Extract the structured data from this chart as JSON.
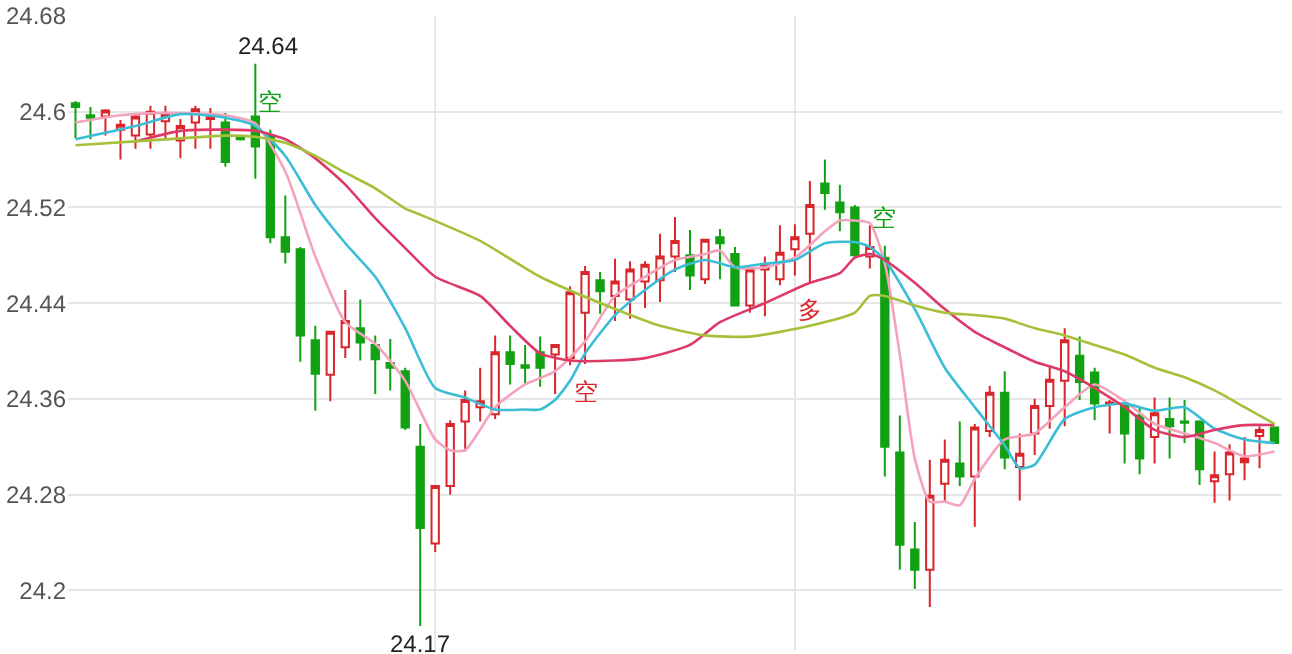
{
  "chart_data": {
    "type": "candlestick",
    "categories": [
      null,
      null,
      null,
      null,
      null,
      null,
      null,
      null,
      null,
      null,
      null,
      null,
      null,
      null,
      null,
      null,
      null,
      null,
      null,
      null,
      null,
      null,
      null,
      null,
      null,
      null,
      null,
      null,
      null,
      null,
      null,
      null,
      null,
      null,
      null,
      null,
      null,
      null,
      null,
      null,
      null,
      null,
      null,
      null,
      null,
      null,
      null,
      null,
      null,
      null,
      null,
      null,
      null,
      null,
      null,
      null,
      null,
      null,
      null,
      null,
      null,
      null,
      null,
      null,
      null,
      null,
      null,
      null,
      null,
      null,
      null,
      null,
      null,
      null,
      null,
      null,
      null,
      null,
      null,
      null,
      null
    ],
    "colors": [
      "#12a112",
      "#12a112",
      "#d9262b",
      "#d9262b",
      "#d9262b",
      "#d9262b",
      "#d9262b",
      "#d9262b",
      "#d9262b",
      "#d9262b",
      "#12a112",
      "#12a112",
      "#12a112",
      "#12a112",
      "#12a112",
      "#12a112",
      "#12a112",
      "#d9262b",
      "#d9262b",
      "#12a112",
      "#12a112",
      "#12a112",
      "#12a112",
      "#12a112",
      "#d9262b",
      "#d9262b",
      "#d9262b",
      "#d9262b",
      "#d9262b",
      "#12a112",
      "#12a112",
      "#12a112",
      "#d9262b",
      "#d9262b",
      "#d9262b",
      "#12a112",
      "#d9262b",
      "#d9262b",
      "#d9262b",
      "#d9262b",
      "#d9262b",
      "#12a112",
      "#d9262b",
      "#12a112",
      "#12a112",
      "#d9262b",
      "#d9262b",
      "#d9262b",
      "#d9262b",
      "#d9262b",
      "#12a112",
      "#12a112",
      "#12a112",
      "#d9262b",
      "#12a112",
      "#12a112",
      "#12a112",
      "#d9262b",
      "#d9262b",
      "#12a112",
      "#d9262b",
      "#d9262b",
      "#12a112",
      "#d9262b",
      "#d9262b",
      "#d9262b",
      "#d9262b",
      "#12a112",
      "#12a112",
      "#d9262b",
      "#12a112",
      "#12a112",
      "#d9262b",
      "#12a112",
      "#12a112",
      "#12a112",
      "#d9262b",
      "#d9262b",
      "#d9262b",
      "#d9262b",
      "#12a112"
    ],
    "ohlc": [
      [
        24.607,
        24.609,
        24.578,
        24.604
      ],
      [
        24.597,
        24.604,
        24.577,
        24.595
      ],
      [
        24.596,
        24.602,
        24.58,
        24.601
      ],
      [
        24.585,
        24.593,
        24.56,
        24.589
      ],
      [
        24.58,
        24.599,
        24.569,
        24.596
      ],
      [
        24.581,
        24.605,
        24.569,
        24.6
      ],
      [
        24.592,
        24.605,
        24.577,
        24.598
      ],
      [
        24.576,
        24.594,
        24.561,
        24.588
      ],
      [
        24.591,
        24.605,
        24.569,
        24.602
      ],
      [
        24.594,
        24.603,
        24.569,
        24.597
      ],
      [
        24.591,
        24.599,
        24.554,
        24.558
      ],
      [
        24.578,
        24.579,
        24.576,
        24.577
      ],
      [
        24.596,
        24.64,
        24.544,
        24.571
      ],
      [
        24.58,
        24.585,
        24.49,
        24.495
      ],
      [
        24.495,
        24.53,
        24.473,
        24.483
      ],
      [
        24.485,
        24.487,
        24.391,
        24.413
      ],
      [
        24.409,
        24.421,
        24.35,
        24.381
      ],
      [
        24.38,
        24.416,
        24.358,
        24.416
      ],
      [
        24.403,
        24.451,
        24.394,
        24.425
      ],
      [
        24.419,
        24.443,
        24.392,
        24.407
      ],
      [
        24.405,
        24.413,
        24.364,
        24.393
      ],
      [
        24.39,
        24.41,
        24.367,
        24.386
      ],
      [
        24.383,
        24.386,
        24.334,
        24.336
      ],
      [
        24.32,
        24.339,
        24.17,
        24.252
      ],
      [
        24.239,
        24.287,
        24.232,
        24.287
      ],
      [
        24.287,
        24.342,
        24.28,
        24.339
      ],
      [
        24.341,
        24.367,
        24.316,
        24.359
      ],
      [
        24.353,
        24.386,
        24.341,
        24.358
      ],
      [
        24.347,
        24.413,
        24.343,
        24.399
      ],
      [
        24.399,
        24.413,
        24.372,
        24.389
      ],
      [
        24.388,
        24.405,
        24.372,
        24.386
      ],
      [
        24.399,
        24.412,
        24.37,
        24.386
      ],
      [
        24.397,
        24.405,
        24.364,
        24.405
      ],
      [
        24.394,
        24.454,
        24.388,
        24.449
      ],
      [
        24.432,
        24.471,
        24.389,
        24.466
      ],
      [
        24.459,
        24.466,
        24.431,
        24.45
      ],
      [
        24.446,
        24.477,
        24.425,
        24.458
      ],
      [
        24.443,
        24.475,
        24.427,
        24.468
      ],
      [
        24.458,
        24.475,
        24.436,
        24.472
      ],
      [
        24.459,
        24.498,
        24.441,
        24.479
      ],
      [
        24.479,
        24.512,
        24.466,
        24.492
      ],
      [
        24.48,
        24.501,
        24.451,
        24.463
      ],
      [
        24.46,
        24.493,
        24.456,
        24.493
      ],
      [
        24.495,
        24.502,
        24.46,
        24.49
      ],
      [
        24.481,
        24.487,
        24.438,
        24.438
      ],
      [
        24.438,
        24.471,
        24.432,
        24.468
      ],
      [
        24.468,
        24.479,
        24.429,
        24.472
      ],
      [
        24.46,
        24.505,
        24.455,
        24.482
      ],
      [
        24.485,
        24.506,
        24.463,
        24.495
      ],
      [
        24.498,
        24.542,
        24.457,
        24.522
      ],
      [
        24.54,
        24.56,
        24.518,
        24.532
      ],
      [
        24.524,
        24.539,
        24.5,
        24.516
      ],
      [
        24.52,
        24.522,
        24.478,
        24.48
      ],
      [
        24.479,
        24.505,
        24.469,
        24.487
      ],
      [
        24.478,
        24.488,
        24.295,
        24.32
      ],
      [
        24.315,
        24.346,
        24.217,
        24.238
      ],
      [
        24.234,
        24.257,
        24.201,
        24.217
      ],
      [
        24.217,
        24.309,
        24.186,
        24.279
      ],
      [
        24.289,
        24.326,
        24.274,
        24.309
      ],
      [
        24.306,
        24.341,
        24.287,
        24.295
      ],
      [
        24.295,
        24.339,
        24.253,
        24.336
      ],
      [
        24.333,
        24.371,
        24.328,
        24.365
      ],
      [
        24.365,
        24.383,
        24.301,
        24.311
      ],
      [
        24.303,
        24.331,
        24.275,
        24.314
      ],
      [
        24.331,
        24.36,
        24.313,
        24.354
      ],
      [
        24.354,
        24.388,
        24.335,
        24.376
      ],
      [
        24.375,
        24.419,
        24.337,
        24.409
      ],
      [
        24.396,
        24.412,
        24.359,
        24.374
      ],
      [
        24.382,
        24.386,
        24.342,
        24.356
      ],
      [
        24.356,
        24.359,
        24.331,
        24.357
      ],
      [
        24.354,
        24.359,
        24.306,
        24.331
      ],
      [
        24.346,
        24.353,
        24.297,
        24.31
      ],
      [
        24.328,
        24.361,
        24.306,
        24.348
      ],
      [
        24.343,
        24.361,
        24.31,
        24.337
      ],
      [
        24.341,
        24.359,
        24.323,
        24.34
      ],
      [
        24.341,
        24.342,
        24.288,
        24.301
      ],
      [
        24.291,
        24.316,
        24.273,
        24.296
      ],
      [
        24.297,
        24.322,
        24.275,
        24.315
      ],
      [
        24.307,
        24.328,
        24.292,
        24.31
      ],
      [
        24.329,
        24.337,
        24.302,
        24.334
      ],
      [
        24.336,
        24.336,
        24.323,
        24.323
      ]
    ],
    "series": [
      {
        "type": "line",
        "color": "#f4a3bd",
        "values": [
          24.591,
          null,
          null,
          24.597,
          null,
          null,
          24.599,
          null,
          null,
          null,
          24.597,
          null,
          24.59,
          null,
          24.55,
          null,
          24.479,
          null,
          24.424,
          null,
          24.406,
          null,
          24.375,
          null,
          24.326,
          24.317,
          24.317,
          null,
          24.353,
          null,
          24.372,
          null,
          24.383,
          null,
          24.408,
          null,
          24.446,
          null,
          24.462,
          null,
          24.476,
          null,
          24.481,
          24.484,
          24.47,
          null,
          24.47,
          null,
          24.478,
          null,
          24.5,
          24.509,
          24.509,
          24.507,
          24.473,
          24.397,
          24.31,
          24.274,
          24.274,
          24.271,
          24.293,
          null,
          24.326,
          null,
          24.331,
          null,
          24.353,
          null,
          24.372,
          null,
          24.358,
          null,
          24.339,
          null,
          24.331,
          null,
          24.323,
          null,
          24.312,
          null,
          24.316
        ]
      },
      {
        "type": "line",
        "color": "#3cbdd6",
        "values": [
          24.577,
          null,
          null,
          null,
          24.588,
          null,
          null,
          24.598,
          null,
          null,
          24.595,
          null,
          24.588,
          null,
          24.563,
          null,
          24.522,
          null,
          24.49,
          null,
          24.462,
          null,
          24.419,
          null,
          24.369,
          null,
          24.361,
          null,
          24.351,
          null,
          24.351,
          24.351,
          24.359,
          24.375,
          24.398,
          null,
          24.43,
          null,
          24.451,
          null,
          24.468,
          null,
          24.476,
          null,
          24.47,
          null,
          24.473,
          null,
          24.476,
          null,
          24.49,
          null,
          24.491,
          24.487,
          24.476,
          null,
          24.435,
          null,
          24.386,
          null,
          24.353,
          null,
          24.321,
          24.302,
          24.305,
          null,
          24.343,
          null,
          24.353,
          null,
          24.356,
          null,
          24.35,
          null,
          24.353,
          null,
          24.335,
          null,
          24.326,
          null,
          24.323
        ]
      },
      {
        "type": "line",
        "color": "#de3a68",
        "values": [
          null,
          null,
          null,
          null,
          24.575,
          null,
          null,
          24.584,
          null,
          null,
          24.585,
          null,
          24.584,
          null,
          24.577,
          null,
          24.561,
          null,
          24.539,
          null,
          24.511,
          null,
          24.486,
          null,
          24.462,
          null,
          null,
          24.446,
          null,
          24.421,
          null,
          24.398,
          null,
          24.392,
          null,
          null,
          24.392,
          null,
          24.394,
          null,
          null,
          24.405,
          null,
          24.424,
          null,
          null,
          24.44,
          null,
          null,
          24.457,
          null,
          24.465,
          24.478,
          24.481,
          24.476,
          null,
          24.457,
          null,
          24.435,
          null,
          24.416,
          null,
          24.403,
          null,
          24.391,
          null,
          24.383,
          null,
          24.369,
          null,
          24.353,
          null,
          24.334,
          null,
          24.328,
          null,
          24.334,
          null,
          24.338,
          null,
          24.338
        ]
      },
      {
        "type": "line",
        "color": "#a5c03a",
        "values": [
          24.572,
          null,
          null,
          null,
          null,
          24.576,
          null,
          null,
          null,
          null,
          24.58,
          null,
          24.579,
          null,
          24.574,
          null,
          24.563,
          null,
          24.549,
          null,
          24.536,
          null,
          24.519,
          24.514,
          null,
          null,
          null,
          24.492,
          null,
          null,
          null,
          24.462,
          null,
          null,
          null,
          null,
          24.435,
          null,
          null,
          24.421,
          null,
          null,
          24.413,
          null,
          null,
          24.412,
          null,
          null,
          null,
          24.421,
          null,
          null,
          24.432,
          24.446,
          24.446,
          null,
          24.438,
          null,
          24.432,
          null,
          24.43,
          null,
          24.427,
          null,
          24.419,
          null,
          24.413,
          null,
          24.405,
          null,
          24.397,
          null,
          24.386,
          null,
          24.378,
          null,
          24.367,
          null,
          24.353,
          null,
          24.339
        ]
      }
    ],
    "annotations": [
      "24.64",
      "24.17",
      {
        "text": "空",
        "y": 24.585
      },
      {
        "text": "空",
        "y": 24.389
      },
      {
        "text": "多",
        "y": 24.457
      },
      {
        "text": "空",
        "y": 24.488
      }
    ],
    "ylim": [
      24.15,
      24.68
    ],
    "yticks": [
      24.2,
      24.28,
      24.36,
      24.44,
      24.52,
      24.6,
      24.68
    ],
    "grid": "y",
    "tick_labels": "y"
  }
}
